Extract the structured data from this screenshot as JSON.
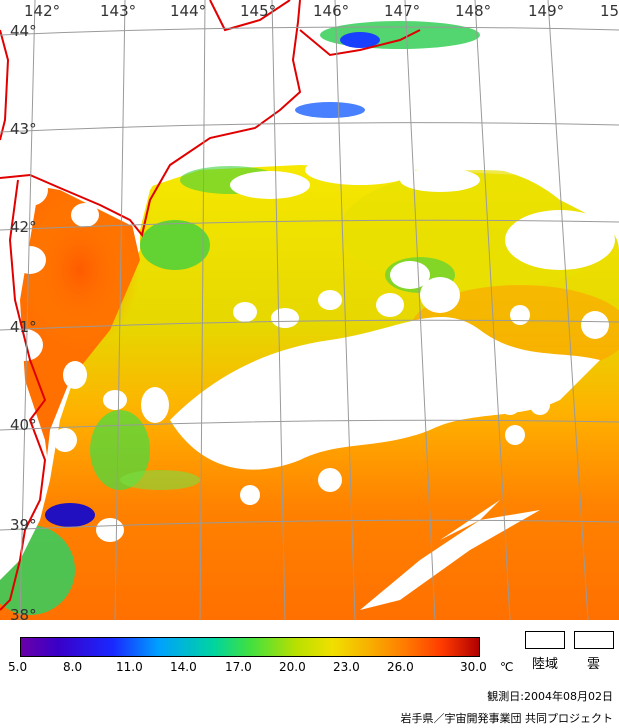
{
  "map": {
    "longitude_labels": [
      "142°",
      "143°",
      "144°",
      "145°",
      "146°",
      "147°",
      "148°",
      "149°",
      "15"
    ],
    "latitude_labels": [
      "44°",
      "43°",
      "42°",
      "41°",
      "40°",
      "39°",
      "38°"
    ],
    "colors": {
      "land": "#ffffff",
      "cloud": "#ffffff",
      "coastline": "#e00000",
      "grid": "#9a9a9a",
      "sea_warm": "#ff7a00",
      "sea_mid": "#f0c000",
      "sea_cool": "#40e040"
    }
  },
  "legend": {
    "ticks": [
      "5.0",
      "8.0",
      "11.0",
      "14.0",
      "17.0",
      "20.0",
      "23.0",
      "26.0",
      "30.0"
    ],
    "unit": "℃",
    "land_label": "陸域",
    "cloud_label": "雲"
  },
  "footer": {
    "observation_date": "観測日:2004年08月02日",
    "credit": "岩手県／宇宙開発事業団 共同プロジェクト"
  }
}
